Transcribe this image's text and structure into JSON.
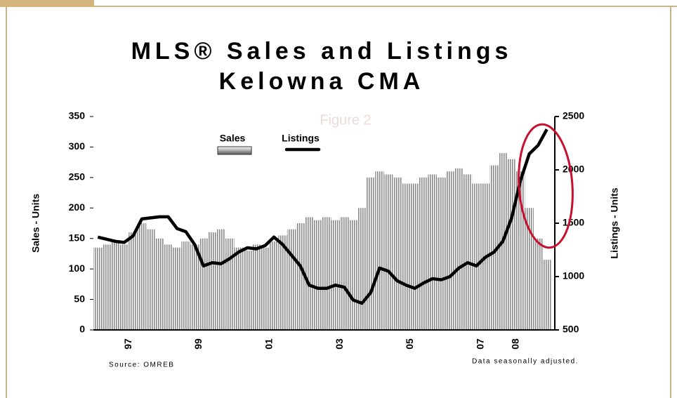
{
  "chart_data": {
    "type": "bar-line",
    "title": "MLS® Sales and Listings",
    "subtitle": "Kelowna CMA",
    "figure_label": "Figure 2",
    "y_label": "Sales - Units",
    "y2_label": "Listings - Units",
    "source": "Source: OMREB",
    "note": "Data seasonally adjusted.",
    "categories": [
      null,
      null,
      null,
      null,
      "97",
      null,
      null,
      null,
      null,
      null,
      null,
      null,
      "99",
      null,
      null,
      null,
      null,
      null,
      null,
      null,
      "01",
      null,
      null,
      null,
      null,
      null,
      null,
      null,
      "03",
      null,
      null,
      null,
      null,
      null,
      null,
      null,
      "05",
      null,
      null,
      null,
      null,
      null,
      null,
      null,
      "07",
      null,
      null,
      null,
      "08",
      null,
      null,
      null
    ],
    "series": [
      {
        "name": "Sales",
        "color": "#8a8a8a",
        "values": [
          135,
          140,
          145,
          140,
          160,
          175,
          165,
          150,
          140,
          135,
          145,
          140,
          150,
          160,
          165,
          150,
          135,
          130,
          140,
          135,
          145,
          155,
          165,
          175,
          185,
          180,
          185,
          180,
          185,
          180,
          200,
          250,
          260,
          255,
          250,
          240,
          240,
          250,
          255,
          250,
          260,
          265,
          255,
          240,
          240,
          270,
          290,
          280,
          260,
          200,
          150,
          115
        ]
      },
      {
        "name": "Listings",
        "color": "#000000",
        "axis": "y2",
        "values": [
          1370,
          1350,
          1330,
          1320,
          1380,
          1540,
          1550,
          1560,
          1560,
          1450,
          1420,
          1300,
          1100,
          1130,
          1120,
          1170,
          1230,
          1270,
          1260,
          1290,
          1370,
          1300,
          1200,
          1100,
          920,
          890,
          890,
          920,
          900,
          780,
          750,
          850,
          1080,
          1050,
          960,
          920,
          890,
          940,
          980,
          970,
          1000,
          1080,
          1130,
          1100,
          1180,
          1230,
          1330,
          1550,
          1900,
          2150,
          2230,
          2380
        ]
      }
    ],
    "ylim": [
      0,
      350
    ],
    "yticks": [
      0,
      50,
      100,
      150,
      200,
      250,
      300,
      350
    ],
    "y2lim": [
      500,
      2500
    ],
    "y2ticks": [
      500,
      1000,
      1500,
      2000,
      2500
    ]
  }
}
